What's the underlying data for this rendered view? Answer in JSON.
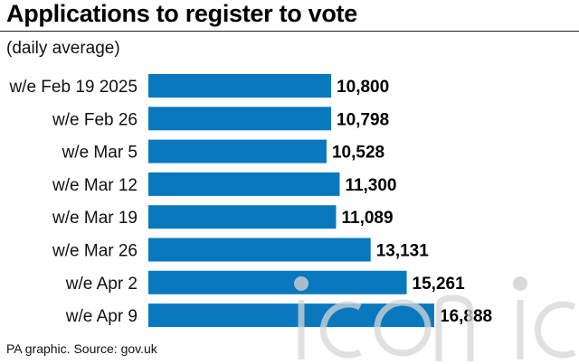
{
  "title": "Applications to register to vote",
  "subtitle": "(daily average)",
  "source": "PA graphic. Source: gov.uk",
  "watermark": "iconic",
  "colors": {
    "bar": "#0a78be",
    "text": "#111111"
  },
  "chart_data": {
    "type": "bar",
    "orientation": "horizontal",
    "categories": [
      "w/e Feb 19 2025",
      "w/e Feb 26",
      "w/e Mar 5",
      "w/e Mar 12",
      "w/e Mar 19",
      "w/e Mar 26",
      "w/e Apr 2",
      "w/e Apr 9"
    ],
    "values": [
      10800,
      10798,
      10528,
      11300,
      11089,
      13131,
      15261,
      16888
    ],
    "value_labels": [
      "10,800",
      "10,798",
      "10,528",
      "11,300",
      "11,089",
      "13,131",
      "15,261",
      "16,888"
    ],
    "xlim": [
      0,
      16888
    ],
    "grid": false,
    "legend": "none"
  }
}
